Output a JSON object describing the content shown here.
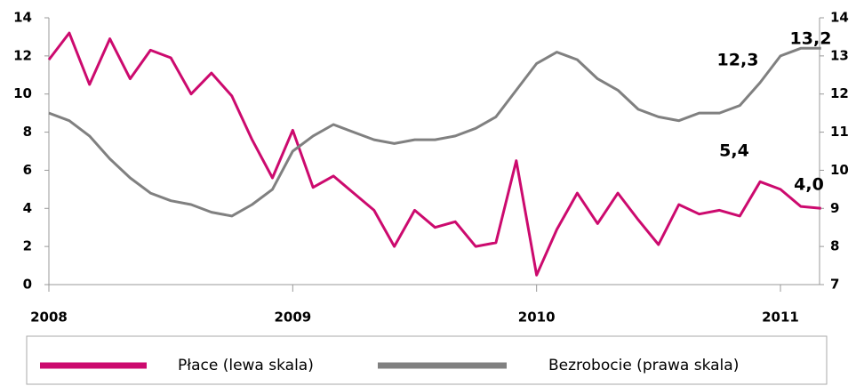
{
  "chart_data": {
    "type": "line",
    "categories": [
      "2008",
      null,
      null,
      null,
      null,
      null,
      null,
      null,
      null,
      null,
      null,
      null,
      "2009",
      null,
      null,
      null,
      null,
      null,
      null,
      null,
      null,
      null,
      null,
      null,
      "2010",
      null,
      null,
      null,
      null,
      null,
      null,
      null,
      null,
      null,
      null,
      null,
      "2011",
      null,
      null
    ],
    "series": [
      {
        "name": "Płace (lewa skala)",
        "color": "#cc0a6e",
        "values": [
          11.8,
          13.2,
          10.5,
          12.9,
          10.8,
          12.3,
          11.9,
          10.0,
          11.1,
          9.9,
          7.6,
          5.6,
          8.1,
          5.1,
          5.7,
          4.8,
          3.9,
          2.0,
          3.9,
          3.0,
          3.3,
          2.0,
          2.2,
          6.5,
          0.5,
          2.9,
          4.8,
          3.2,
          4.8,
          3.4,
          2.1,
          4.2,
          3.7,
          3.9,
          3.6,
          5.4,
          5.0,
          4.1,
          4.0
        ]
      },
      {
        "name": "Bezrobocie (prawa skala)",
        "color": "#808080",
        "axis": "y2",
        "values": [
          11.5,
          11.3,
          10.9,
          10.3,
          9.8,
          9.4,
          9.2,
          9.1,
          8.9,
          8.8,
          9.1,
          9.5,
          10.5,
          10.9,
          11.2,
          11.0,
          10.8,
          10.7,
          10.8,
          10.8,
          10.9,
          11.1,
          11.4,
          12.1,
          12.8,
          13.1,
          12.9,
          12.4,
          12.1,
          11.6,
          11.4,
          11.3,
          11.5,
          11.5,
          11.7,
          12.3,
          13.0,
          13.2,
          13.2
        ]
      }
    ],
    "ylim": [
      0,
      14
    ],
    "yticks": [
      0,
      2,
      4,
      6,
      8,
      10,
      12,
      14
    ],
    "y2lim": [
      7,
      14
    ],
    "y2ticks": [
      7,
      8,
      9,
      10,
      11,
      12,
      13,
      14
    ],
    "annotations": [
      "12,3",
      "13,2",
      "5,4",
      "4,0"
    ],
    "legend": "bottom"
  }
}
